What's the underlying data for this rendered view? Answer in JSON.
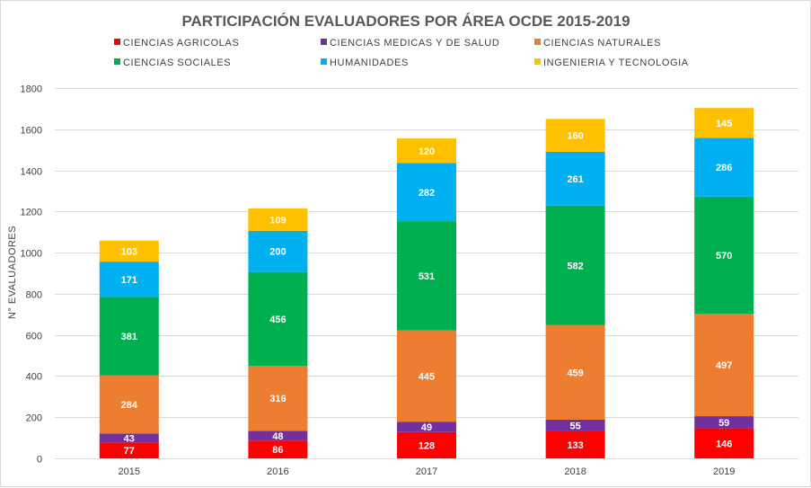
{
  "chart_data": {
    "type": "bar",
    "stacked": true,
    "title": "PARTICIPACIÓN EVALUADORES POR ÁREA OCDE 2015-2019",
    "ylabel": "N° EVALUADORES",
    "xlabel": "",
    "ylim": [
      0,
      1800
    ],
    "yticks": [
      0,
      200,
      400,
      600,
      800,
      1000,
      1200,
      1400,
      1600,
      1800
    ],
    "grid": true,
    "legend_position": "top",
    "categories": [
      "2015",
      "2016",
      "2017",
      "2018",
      "2019"
    ],
    "series": [
      {
        "name": "CIENCIAS AGRICOLAS",
        "color": "#ff0000",
        "values": [
          77,
          86,
          128,
          133,
          146
        ]
      },
      {
        "name": "CIENCIAS MEDICAS Y DE SALUD",
        "color": "#7030a0",
        "values": [
          43,
          48,
          49,
          55,
          59
        ]
      },
      {
        "name": "CIENCIAS NATURALES",
        "color": "#ed7d31",
        "values": [
          284,
          316,
          445,
          459,
          497
        ]
      },
      {
        "name": "CIENCIAS SOCIALES",
        "color": "#00b050",
        "values": [
          381,
          456,
          531,
          582,
          570
        ]
      },
      {
        "name": "HUMANIDADES",
        "color": "#00b0f0",
        "values": [
          171,
          200,
          282,
          261,
          286
        ]
      },
      {
        "name": "INGENIERIA Y TECNOLOGIA",
        "color": "#ffc000",
        "values": [
          103,
          109,
          120,
          160,
          145
        ]
      }
    ]
  }
}
